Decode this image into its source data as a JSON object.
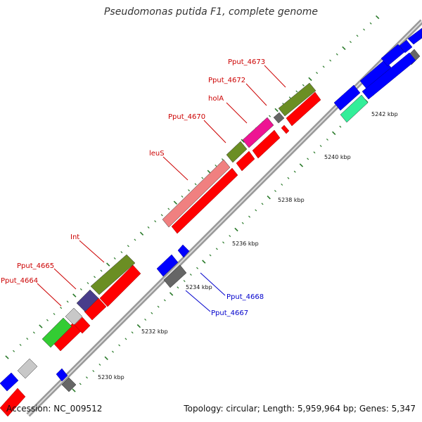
{
  "header": {
    "title": "Pseudomonas putida F1, complete genome"
  },
  "footer": {
    "accession": "Accession: NC_009512",
    "summary": "Topology: circular; Length: 5,959,964 bp; Genes: 5,347"
  },
  "ticks": [
    {
      "label": "5230 kbp"
    },
    {
      "label": "5232 kbp"
    },
    {
      "label": "5234 kbp"
    },
    {
      "label": "5236 kbp"
    },
    {
      "label": "5238 kbp"
    },
    {
      "label": "5240 kbp"
    },
    {
      "label": "5242 kbp"
    }
  ],
  "gene_labels": {
    "pput_4664": "Pput_4664",
    "pput_4665": "Pput_4665",
    "int": "Int",
    "leus": "leuS",
    "pput_4670": "Pput_4670",
    "hola": "holA",
    "pput_4672": "Pput_4672",
    "pput_4673": "Pput_4673",
    "pput_4667": "Pput_4667",
    "pput_4668": "Pput_4668"
  },
  "colors": {
    "cds_forward": "#ff0000",
    "cds_reverse": "#0000ff",
    "cog_green": "#6b8e23",
    "cog_navy": "#483d8b",
    "cog_lightgray": "#c8c8c8",
    "cog_brightgreen": "#33cc33",
    "cog_salmon": "#f08080",
    "cog_magenta": "#ee1493",
    "cog_gray": "#666666",
    "cog_aquamarine": "#33ee99",
    "backbone": "#999999",
    "tick_green": "#2a7a2a",
    "label_forward": "#cc0000",
    "label_reverse": "#0000cc"
  }
}
